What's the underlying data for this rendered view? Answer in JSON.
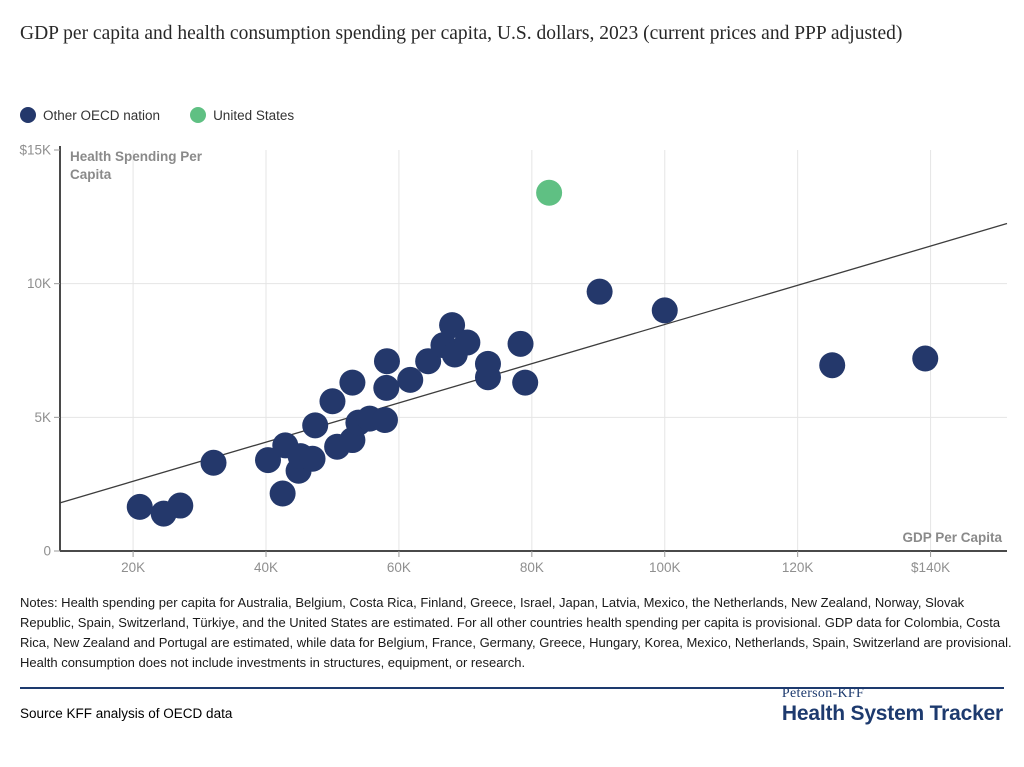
{
  "title": "GDP per capita and health consumption spending per capita, U.S. dollars, 2023 (current prices and PPP adjusted)",
  "legend": [
    {
      "label": "Other OECD nation",
      "color": "#24386B"
    },
    {
      "label": "United States",
      "color": "#5FC083"
    }
  ],
  "chart_data": {
    "type": "scatter",
    "title": "GDP per capita and health consumption spending per capita, U.S. dollars, 2023 (current prices and PPP adjusted)",
    "xlabel": "GDP Per Capita",
    "ylabel": "Health Spending Per Capita",
    "units": "thousands of U.S. dollars, PPP adjusted",
    "xlim": [
      9,
      151.5
    ],
    "ylim": [
      0,
      15
    ],
    "grid": true,
    "legend_position": "top-left",
    "x_ticks": [
      {
        "v": 20,
        "label": "20K"
      },
      {
        "v": 40,
        "label": "40K"
      },
      {
        "v": 60,
        "label": "60K"
      },
      {
        "v": 80,
        "label": "80K"
      },
      {
        "v": 100,
        "label": "100K"
      },
      {
        "v": 120,
        "label": "120K"
      },
      {
        "v": 140,
        "label": "$140K"
      }
    ],
    "y_ticks": [
      {
        "v": 0,
        "label": "0"
      },
      {
        "v": 5,
        "label": "5K"
      },
      {
        "v": 10,
        "label": "10K"
      },
      {
        "v": 15,
        "label": "$15K"
      }
    ],
    "series": [
      {
        "name": "Other OECD nation",
        "color": "#24386B",
        "points": [
          [
            21.0,
            1.65
          ],
          [
            24.6,
            1.4
          ],
          [
            27.1,
            1.7
          ],
          [
            32.1,
            3.3
          ],
          [
            40.3,
            3.4
          ],
          [
            42.5,
            2.15
          ],
          [
            42.9,
            3.95
          ],
          [
            44.9,
            3.0
          ],
          [
            45.2,
            3.55
          ],
          [
            47.0,
            3.45
          ],
          [
            47.4,
            4.7
          ],
          [
            50.0,
            5.6
          ],
          [
            50.7,
            3.9
          ],
          [
            53.0,
            4.15
          ],
          [
            53.0,
            6.3
          ],
          [
            53.9,
            4.8
          ],
          [
            55.6,
            4.95
          ],
          [
            57.9,
            4.9
          ],
          [
            58.1,
            6.1
          ],
          [
            58.2,
            7.1
          ],
          [
            61.7,
            6.4
          ],
          [
            64.4,
            7.1
          ],
          [
            66.7,
            7.7
          ],
          [
            68.0,
            8.45
          ],
          [
            68.4,
            7.35
          ],
          [
            70.3,
            7.8
          ],
          [
            73.4,
            6.5
          ],
          [
            73.4,
            7.0
          ],
          [
            78.3,
            7.75
          ],
          [
            79.0,
            6.3
          ],
          [
            90.2,
            9.7
          ],
          [
            100.0,
            9.0
          ],
          [
            125.2,
            6.95
          ],
          [
            139.2,
            7.2
          ]
        ]
      },
      {
        "name": "United States",
        "color": "#5FC083",
        "points": [
          [
            82.6,
            13.4
          ]
        ]
      }
    ],
    "trendline": {
      "x1": 9,
      "y1": 1.8,
      "x2": 151.5,
      "y2": 12.25
    }
  },
  "notes": "Notes: Health spending per capita for Australia, Belgium, Costa Rica, Finland, Greece, Israel, Japan, Latvia, Mexico, the Netherlands, New Zealand, Norway, Slovak Republic, Spain, Switzerland, Türkiye, and the United States are estimated. For all other countries health spending per capita is provisional. GDP data for Colombia, Costa Rica, New Zealand and Portugal are estimated, while data for Belgium, France, Germany, Greece, Hungary, Korea, Mexico, Netherlands, Spain, Switzerland are provisional. Health consumption does not include investments in structures, equipment, or research.",
  "source": "Source KFF analysis of OECD data",
  "branding": {
    "top": "Peterson-KFF",
    "bottom": "Health System Tracker"
  },
  "colors": {
    "navy": "#24386B",
    "green": "#5FC083",
    "brand_navy": "#1D3A6E",
    "gridline": "#E5E5E5",
    "axis": "#4A4A4A",
    "tick_text": "#8F8F8F",
    "axis_title": "#8A8A8A",
    "trendline": "#3D3D3D"
  }
}
